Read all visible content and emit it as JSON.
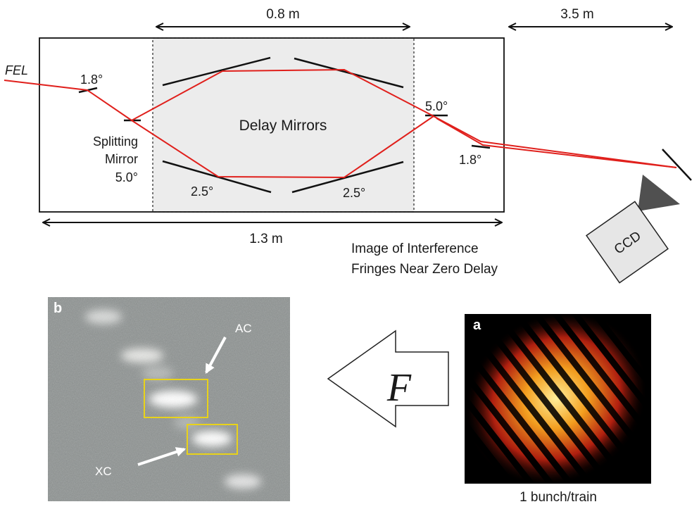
{
  "setup": {
    "fel_label": "FEL",
    "delay_section_label": "Delay Mirrors",
    "splitting_mirror_label_line1": "Splitting",
    "splitting_mirror_label_line2": "Mirror",
    "splitting_mirror_angle": "5.0°",
    "entry_mirror_angle": "1.8°",
    "exit_mirror_top_angle": "5.0°",
    "exit_mirror_bottom_angle": "1.8°",
    "delay_mirror_left_angle": "2.5°",
    "delay_mirror_right_angle": "2.5°",
    "delay_length": "0.8 m",
    "total_length": "1.3 m",
    "ccd_distance": "3.5 m",
    "ccd_label": "CCD",
    "fringe_caption_line1": "Image of Interference",
    "fringe_caption_line2": "Fringes Near Zero Delay"
  },
  "panel_b": {
    "letter": "b",
    "ac_label": "AC",
    "xc_label": "XC"
  },
  "transform": {
    "symbol": "F"
  },
  "panel_a": {
    "letter": "a",
    "caption": "1 bunch/train"
  },
  "colors": {
    "beam": "#e0201c",
    "delay_box_fill": "#ececec",
    "roi_box": "#e8d21a",
    "noise_background": "#8c9190"
  }
}
